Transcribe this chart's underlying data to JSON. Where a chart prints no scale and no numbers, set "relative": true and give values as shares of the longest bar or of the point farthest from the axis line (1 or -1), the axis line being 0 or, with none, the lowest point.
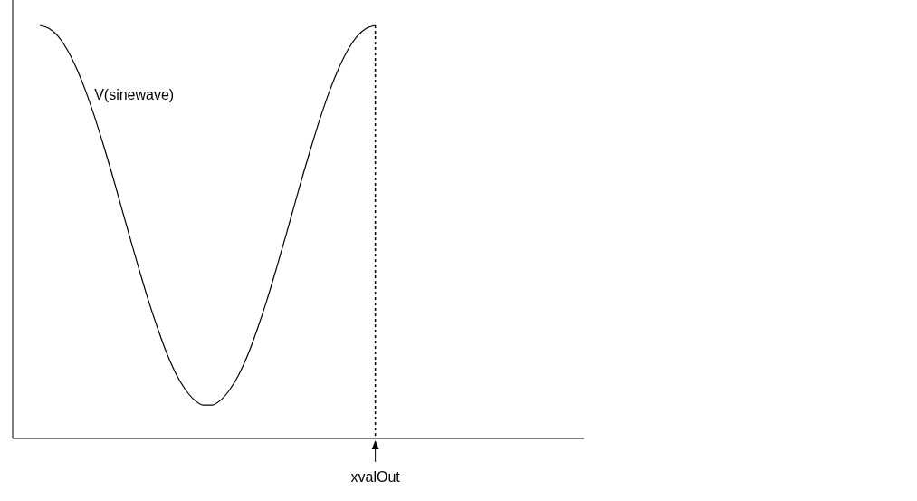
{
  "chart_data": {
    "type": "line",
    "relative": true,
    "marker": "none",
    "line_style": "solid",
    "categories": [
      null,
      null,
      null,
      null,
      null,
      null,
      null,
      null,
      null,
      null,
      null,
      null,
      null,
      null,
      null,
      null,
      null,
      null,
      null,
      null,
      null,
      null,
      null,
      null,
      null,
      null,
      null,
      null,
      null,
      null,
      null,
      null,
      null,
      null,
      null,
      null,
      null,
      null,
      null,
      null,
      null,
      null,
      null,
      null,
      null,
      null,
      null,
      null,
      null,
      null,
      null,
      null,
      null,
      null,
      null,
      null,
      null,
      null
    ],
    "series": [
      {
        "name": "V(sinewave)",
        "color": "#000000",
        "values": [
          1,
          0.993,
          0.974,
          0.942,
          0.898,
          0.844,
          0.781,
          0.711,
          0.637,
          0.559,
          0.481,
          0.405,
          0.332,
          0.266,
          0.206,
          0.157,
          0.12,
          0.094,
          0.081,
          0.081,
          0.094,
          0.12,
          0.157,
          0.206,
          0.266,
          0.332,
          0.405,
          0.481,
          0.559,
          0.637,
          0.711,
          0.781,
          0.844,
          0.898,
          0.942,
          0.974,
          0.993,
          1,
          null,
          null,
          null,
          null,
          null,
          null,
          null,
          null,
          null,
          null,
          null,
          null,
          null,
          null,
          null,
          null,
          null,
          null,
          null,
          null
        ]
      }
    ],
    "annotations": [
      "xvalOut"
    ]
  }
}
